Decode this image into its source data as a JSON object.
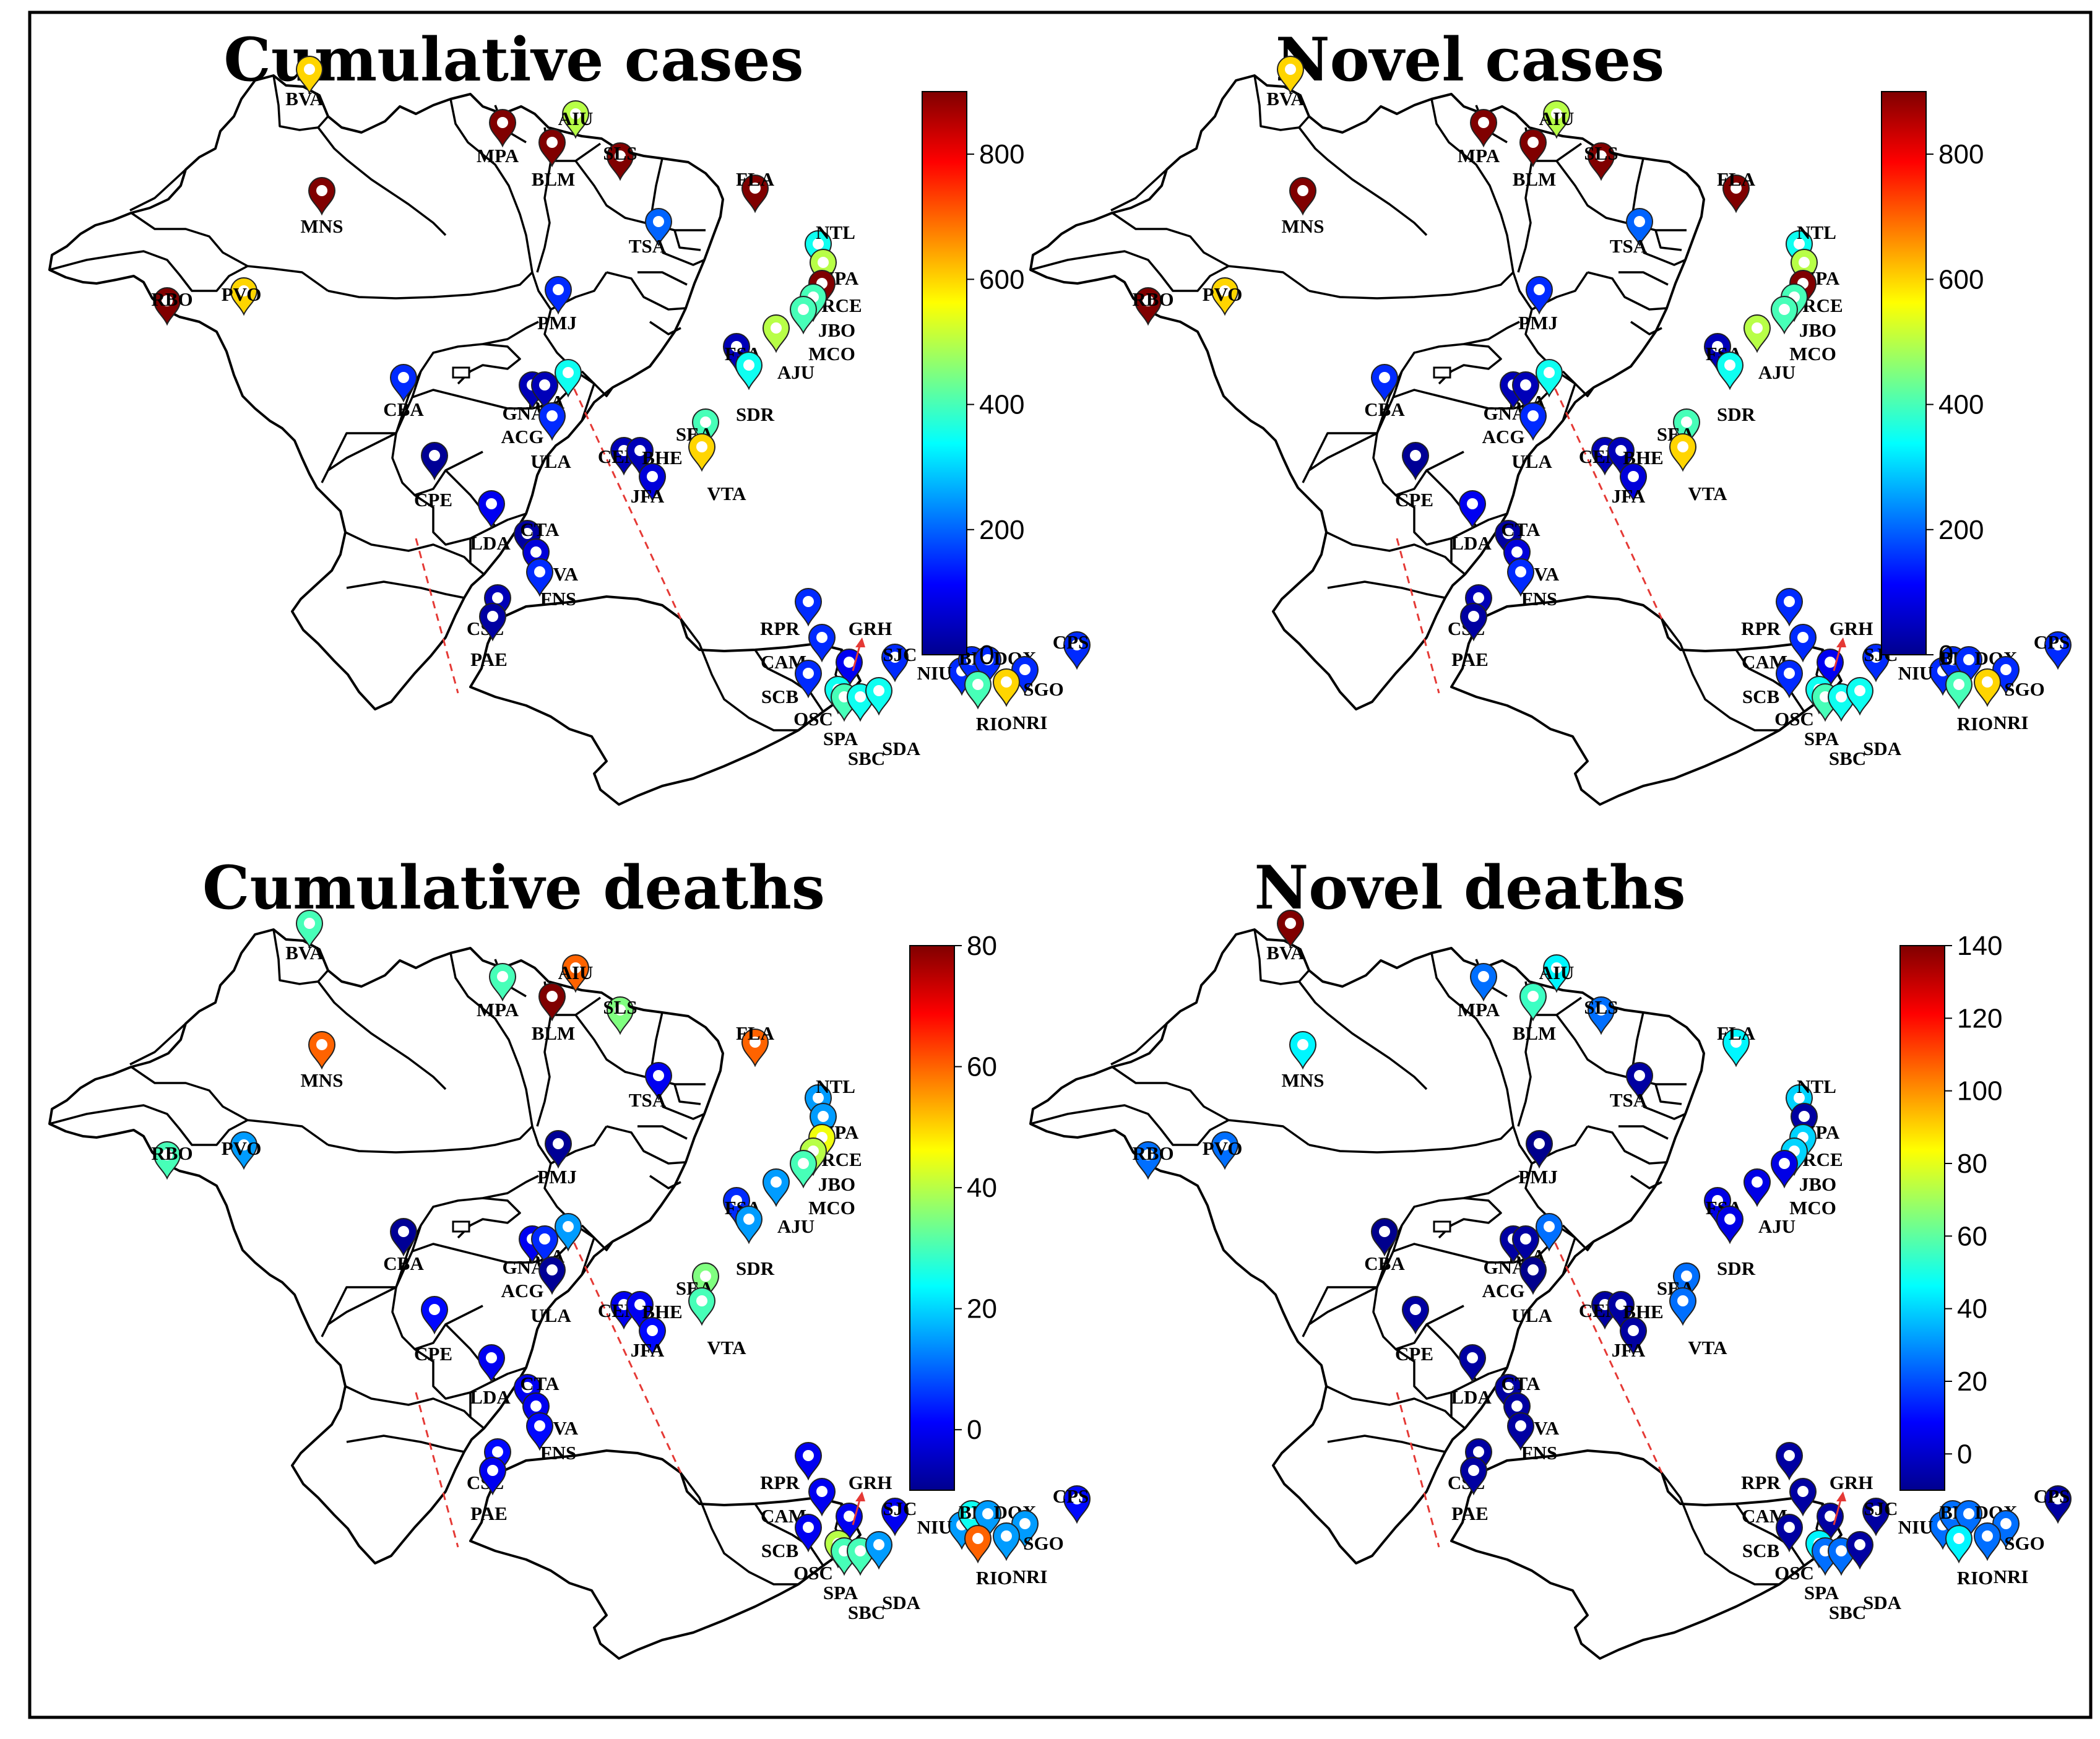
{
  "figure": {
    "panels": [
      {
        "id": "cumulative-cases",
        "title": "Cumulative cases",
        "colorbar": {
          "min": 0,
          "max": 900,
          "ticks": [
            "0",
            "200",
            "400",
            "600",
            "800"
          ]
        },
        "values": {
          "BVA": 600,
          "MPA": 900,
          "AIU": 500,
          "BLM": 900,
          "SLS": 900,
          "MNS": 900,
          "FLA": 900,
          "TSA": 200,
          "NTL": 350,
          "JPA": 500,
          "RCE": 900,
          "JBO": 400,
          "MCO": 400,
          "AJU": 500,
          "FSA": 50,
          "SDR": 350,
          "RBO": 900,
          "PVO": 600,
          "PMJ": 150,
          "CBA": 150,
          "BSA": 350,
          "GNA": 50,
          "ACG": 50,
          "ULA": 150,
          "SEA": 400,
          "CEM": 50,
          "BHE": 50,
          "JFA": 80,
          "VTA": 600,
          "CPE": 20,
          "LDA": 100,
          "CTA": 30,
          "JVA": 80,
          "FNS": 150,
          "CSL": 50,
          "PAE": 30,
          "RPR": 150,
          "GRH": 100,
          "CAM": 150,
          "SJC": 150,
          "SCB": 150,
          "OSC": 350,
          "SPA": 400,
          "SBC": 350,
          "SDA": 350,
          "NIU": 150,
          "BFX": 150,
          "DQX": 150,
          "CPS": 150,
          "SGO": 150,
          "RIO": 400,
          "NRI": 600
        }
      },
      {
        "id": "novel-cases",
        "title": "Novel cases",
        "colorbar": {
          "min": 0,
          "max": 900,
          "ticks": [
            "0",
            "200",
            "400",
            "600",
            "800"
          ]
        },
        "values": {
          "BVA": 600,
          "MPA": 900,
          "AIU": 500,
          "BLM": 900,
          "SLS": 900,
          "MNS": 900,
          "FLA": 900,
          "TSA": 200,
          "NTL": 350,
          "JPA": 500,
          "RCE": 900,
          "JBO": 400,
          "MCO": 400,
          "AJU": 500,
          "FSA": 50,
          "SDR": 350,
          "RBO": 900,
          "PVO": 600,
          "PMJ": 150,
          "CBA": 150,
          "BSA": 350,
          "GNA": 50,
          "ACG": 50,
          "ULA": 150,
          "SEA": 400,
          "CEM": 50,
          "BHE": 50,
          "JFA": 80,
          "VTA": 600,
          "CPE": 20,
          "LDA": 100,
          "CTA": 30,
          "JVA": 80,
          "FNS": 150,
          "CSL": 50,
          "PAE": 30,
          "RPR": 150,
          "GRH": 100,
          "CAM": 150,
          "SJC": 150,
          "SCB": 150,
          "OSC": 350,
          "SPA": 400,
          "SBC": 350,
          "SDA": 350,
          "NIU": 150,
          "BFX": 150,
          "DQX": 150,
          "CPS": 150,
          "SGO": 150,
          "RIO": 400,
          "NRI": 600
        }
      },
      {
        "id": "cumulative-deaths",
        "title": "Cumulative deaths",
        "colorbar": {
          "min": -10,
          "max": 80,
          "ticks": [
            "0",
            "20",
            "40",
            "60",
            "80"
          ]
        },
        "values": {
          "BVA": 30,
          "MPA": 30,
          "AIU": 60,
          "BLM": 80,
          "SLS": 35,
          "MNS": 60,
          "FLA": 60,
          "TSA": 0,
          "NTL": 15,
          "JPA": 15,
          "RCE": 45,
          "JBO": 40,
          "MCO": 30,
          "AJU": 15,
          "FSA": 5,
          "SDR": 15,
          "RBO": 30,
          "PVO": 15,
          "PMJ": -8,
          "CBA": -8,
          "BSA": 15,
          "GNA": 0,
          "ACG": 5,
          "ULA": -8,
          "SEA": 35,
          "CEM": 0,
          "BHE": 0,
          "JFA": 2,
          "VTA": 30,
          "CPE": 2,
          "LDA": 0,
          "CTA": 0,
          "JVA": 0,
          "FNS": 2,
          "CSL": 2,
          "PAE": 0,
          "RPR": 0,
          "GRH": 0,
          "CAM": 0,
          "SJC": 0,
          "SCB": 0,
          "OSC": 40,
          "SPA": 30,
          "SBC": 30,
          "SDA": 15,
          "NIU": 15,
          "BFX": 25,
          "DQX": 15,
          "CPS": 2,
          "SGO": 15,
          "RIO": 60,
          "NRI": 15
        }
      },
      {
        "id": "novel-deaths",
        "title": "Novel deaths",
        "colorbar": {
          "min": -10,
          "max": 140,
          "ticks": [
            "0",
            "20",
            "40",
            "60",
            "80",
            "100",
            "120",
            "140"
          ]
        },
        "values": {
          "BVA": 140,
          "MPA": 25,
          "AIU": 45,
          "BLM": 55,
          "SLS": 25,
          "MNS": 45,
          "FLA": 45,
          "TSA": -5,
          "NTL": 40,
          "JPA": -5,
          "RCE": 40,
          "JBO": 40,
          "MCO": 5,
          "AJU": 5,
          "FSA": 5,
          "SDR": 5,
          "RBO": 25,
          "PVO": 25,
          "PMJ": -8,
          "CBA": -8,
          "BSA": 25,
          "GNA": -5,
          "ACG": -5,
          "ULA": -8,
          "SEA": 25,
          "CEM": -5,
          "BHE": -5,
          "JFA": -5,
          "VTA": 25,
          "CPE": -5,
          "LDA": -5,
          "CTA": -5,
          "JVA": -5,
          "FNS": -5,
          "CSL": -5,
          "PAE": -5,
          "RPR": -5,
          "GRH": -5,
          "CAM": -5,
          "SJC": -5,
          "SCB": -5,
          "OSC": 45,
          "SPA": 25,
          "SBC": 25,
          "SDA": -5,
          "NIU": 25,
          "BFX": 25,
          "DQX": 25,
          "CPS": -5,
          "SGO": 25,
          "RIO": 45,
          "NRI": 25
        }
      }
    ]
  }
}
